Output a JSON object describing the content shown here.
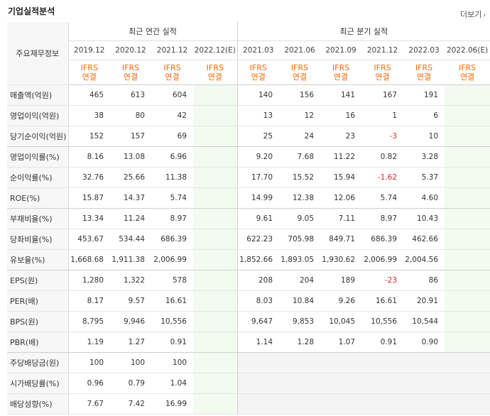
{
  "title": "기업실적분석",
  "more_label": "더보기",
  "row_header": "주요재무정보",
  "annual_label": "최근 연간 실적",
  "quarter_label": "최근 분기 실적",
  "annual_periods": [
    "2019.12",
    "2020.12",
    "2021.12",
    "2022.12(E)"
  ],
  "quarter_periods": [
    "2021.03",
    "2021.06",
    "2021.09",
    "2021.12",
    "2022.03",
    "2022.06(E)"
  ],
  "ifrs": "IFRS",
  "consolidated": "연결",
  "rows": [
    {
      "label": "매출액(억원)",
      "values": [
        "465",
        "613",
        "604",
        "",
        "140",
        "156",
        "141",
        "167",
        "191",
        ""
      ]
    },
    {
      "label": "영업이익(억원)",
      "values": [
        "38",
        "80",
        "42",
        "",
        "13",
        "12",
        "16",
        "1",
        "6",
        ""
      ]
    },
    {
      "label": "당기순이익(억원)",
      "values": [
        "152",
        "157",
        "69",
        "",
        "25",
        "24",
        "23",
        "-3",
        "10",
        ""
      ]
    },
    {
      "label": "영업이익률(%)",
      "values": [
        "8.16",
        "13.08",
        "6.96",
        "",
        "9.20",
        "7.68",
        "11.22",
        "0.82",
        "3.28",
        ""
      ]
    },
    {
      "label": "순이익률(%)",
      "values": [
        "32.76",
        "25.66",
        "11.38",
        "",
        "17.70",
        "15.52",
        "15.94",
        "-1.62",
        "5.37",
        ""
      ]
    },
    {
      "label": "ROE(%)",
      "values": [
        "15.87",
        "14.37",
        "5.74",
        "",
        "14.99",
        "12.38",
        "12.06",
        "5.74",
        "4.60",
        ""
      ]
    },
    {
      "label": "부채비율(%)",
      "values": [
        "13.34",
        "11.24",
        "8.97",
        "",
        "9.61",
        "9.05",
        "7.11",
        "8.97",
        "10.43",
        ""
      ]
    },
    {
      "label": "당좌비율(%)",
      "values": [
        "453.67",
        "534.44",
        "686.39",
        "",
        "622.23",
        "705.98",
        "849.71",
        "686.39",
        "462.66",
        ""
      ]
    },
    {
      "label": "유보율(%)",
      "values": [
        "1,668.68",
        "1,911.38",
        "2,006.99",
        "",
        "1,852.66",
        "1,893.05",
        "1,930.62",
        "2,006.99",
        "2,004.56",
        ""
      ]
    },
    {
      "label": "EPS(원)",
      "values": [
        "1,280",
        "1,322",
        "578",
        "",
        "208",
        "204",
        "189",
        "-23",
        "86",
        ""
      ]
    },
    {
      "label": "PER(배)",
      "values": [
        "8.17",
        "9.57",
        "16.61",
        "",
        "8.03",
        "10.84",
        "9.26",
        "16.61",
        "20.91",
        ""
      ]
    },
    {
      "label": "BPS(원)",
      "values": [
        "8,795",
        "9,946",
        "10,556",
        "",
        "9,647",
        "9,853",
        "10,045",
        "10,556",
        "10,544",
        ""
      ]
    },
    {
      "label": "PBR(배)",
      "values": [
        "1.19",
        "1.27",
        "0.91",
        "",
        "1.14",
        "1.28",
        "1.07",
        "0.91",
        "0.90",
        ""
      ]
    },
    {
      "label": "주당배당금(원)",
      "values": [
        "100",
        "100",
        "100",
        "",
        "",
        "",
        "",
        "",
        "",
        ""
      ]
    },
    {
      "label": "시가배당률(%)",
      "values": [
        "0.96",
        "0.79",
        "1.04",
        "",
        "",
        "",
        "",
        "",
        "",
        ""
      ]
    },
    {
      "label": "배당성향(%)",
      "values": [
        "7.67",
        "7.42",
        "16.99",
        "",
        "",
        "",
        "",
        "",
        "",
        ""
      ]
    }
  ],
  "colors": {
    "ifrs": "#ff6600",
    "negative": "#e52222",
    "estimate_bg": "#f3faf0",
    "label_bg": "#f7f7f7"
  }
}
